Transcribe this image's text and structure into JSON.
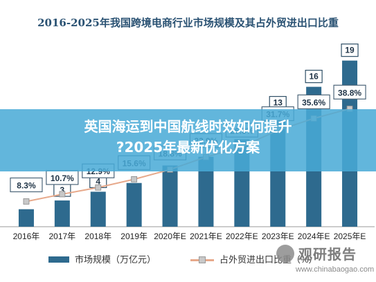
{
  "banner": {
    "line1": "英国海运到中国航线时效如何提升",
    "line2": "?2025年最新优化方案"
  },
  "watermark": {
    "brand": "观研报告",
    "url": "www.chinabaogao.com"
  },
  "colors": {
    "bar": "#2e6a8e",
    "line": "#e7a98b",
    "marker": "#c8c8c8",
    "banner": "#48aad6"
  },
  "chart_data": {
    "type": "bar",
    "title": "2016-2025年我国跨境电商行业市场规模及其占外贸进出口比重",
    "categories": [
      "2016年",
      "2017年",
      "2018年",
      "2019年",
      "2020年E",
      "2021年E",
      "2022年E",
      "2023年E",
      "2024年E",
      "2025年E"
    ],
    "series": [
      {
        "name": "市场规模（万亿元）",
        "type": "bar",
        "values": [
          2,
          3,
          4,
          5,
          7,
          8,
          10,
          13,
          16,
          19
        ],
        "labels": [
          "",
          "3",
          "4",
          "",
          "",
          "",
          "",
          "13",
          "16",
          "19"
        ]
      },
      {
        "name": "占外贸进出口比重（%）",
        "type": "line",
        "values": [
          8.3,
          10.7,
          12.9,
          15.6,
          18.8,
          22.9,
          26.3,
          31.7,
          35.6,
          38.8
        ],
        "labels": [
          "8.3%",
          "10.7%",
          "12.9%",
          "15.6%",
          "18.8%",
          "22.9%",
          "26.3%",
          "31.7%",
          "35.6%",
          "38.8%"
        ]
      }
    ],
    "ylim": [
      0,
      20
    ],
    "y2lim": [
      0,
      50
    ],
    "grid": false,
    "legend_position": "bottom"
  }
}
